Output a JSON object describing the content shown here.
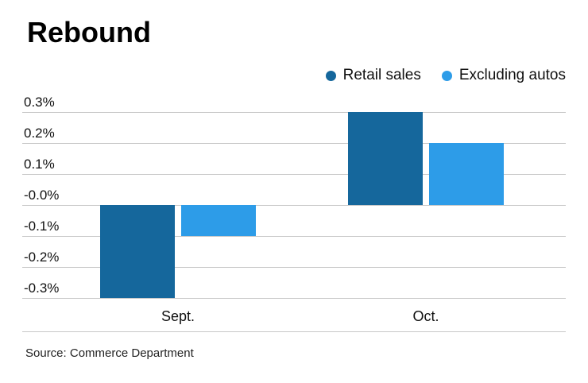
{
  "title": "Rebound",
  "source": "Source: Commerce Department",
  "legend": [
    {
      "label": "Retail sales",
      "color": "#15679c"
    },
    {
      "label": "Excluding autos",
      "color": "#2d9ce8"
    }
  ],
  "chart_data": {
    "type": "bar",
    "title": "Rebound",
    "categories": [
      "Sept.",
      "Oct."
    ],
    "series": [
      {
        "name": "Retail sales",
        "color": "#15679c",
        "values": [
          -0.3,
          0.3
        ]
      },
      {
        "name": "Excluding autos",
        "color": "#2d9ce8",
        "values": [
          -0.1,
          0.2
        ]
      }
    ],
    "ytick_labels": [
      "0.3%",
      "0.2%",
      "0.1%",
      "-0.0%",
      "-0.1%",
      "-0.2%",
      "-0.3%"
    ],
    "ytick_values": [
      0.3,
      0.2,
      0.1,
      0.0,
      -0.1,
      -0.2,
      -0.3
    ],
    "ylim": [
      -0.3,
      0.3
    ],
    "grid": true,
    "legend_position": "top-right",
    "xlabel": "",
    "ylabel": ""
  }
}
